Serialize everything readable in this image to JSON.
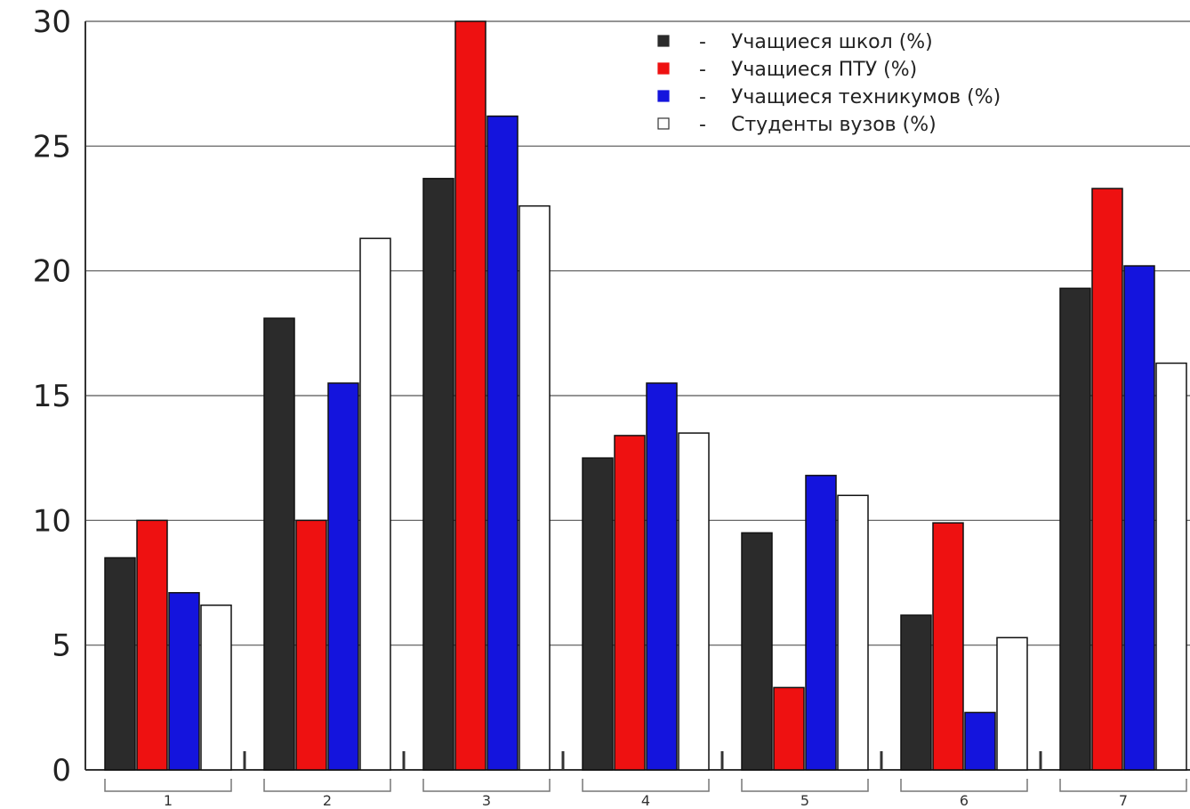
{
  "chart_data": {
    "type": "bar",
    "categories": [
      "1",
      "2",
      "3",
      "4",
      "5",
      "6",
      "7"
    ],
    "series": [
      {
        "name": "Учащиеся школ (%)",
        "color": "#2b2b2b",
        "values": [
          8.5,
          18.1,
          23.7,
          12.5,
          9.5,
          6.2,
          19.3
        ]
      },
      {
        "name": "Учащиеся ПТУ (%)",
        "color": "#ee1111",
        "values": [
          10.0,
          10.0,
          30.0,
          13.4,
          3.3,
          9.9,
          23.3
        ]
      },
      {
        "name": "Учащиеся техникумов (%)",
        "color": "#1414dd",
        "values": [
          7.1,
          15.5,
          26.2,
          15.5,
          11.8,
          2.3,
          20.2
        ]
      },
      {
        "name": "Студенты вузов (%)",
        "color": "#ffffff",
        "values": [
          6.6,
          21.3,
          22.6,
          13.5,
          11.0,
          5.3,
          16.3
        ]
      }
    ],
    "legend_markers": [
      "■",
      "■",
      "■",
      "□"
    ],
    "legend_separator": "-",
    "yticks": [
      "0",
      "5",
      "10",
      "15",
      "20",
      "25",
      "30"
    ],
    "ylim": [
      0,
      30
    ],
    "grid": true,
    "legend_position": "top-right"
  }
}
